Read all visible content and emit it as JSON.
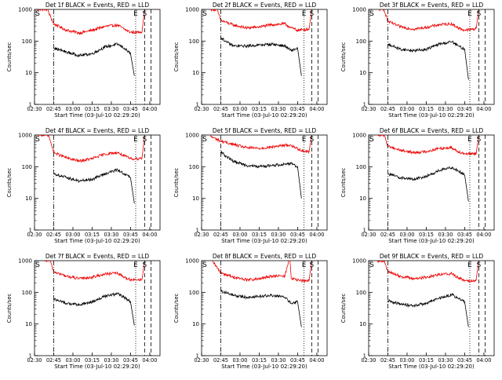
{
  "colors": {
    "events": "#000000",
    "lld": "#ee0000"
  },
  "chart_data": [
    {
      "type": "line",
      "title": "Det 1f BLACK = Events, RED = LLD",
      "xlabel": "Start Time (03-Jul-10 02:29:20)",
      "ylabel": "Counts/sec",
      "ylog": true,
      "ylim": [
        1,
        1000
      ],
      "xlim": [
        "02:30",
        "04:08"
      ],
      "x_ticks": [
        "02:30",
        "02:45",
        "03:00",
        "03:15",
        "03:30",
        "03:45",
        "04:00"
      ],
      "y_ticks": [
        "1",
        "10",
        "100",
        "1000"
      ],
      "markers": [
        "S",
        "E",
        "S"
      ],
      "marker_times": [
        "02:29",
        "03:49",
        "03:56"
      ],
      "lines": {
        "dashdot": "02:45",
        "dotted": "03:49",
        "dashed": [
          "03:56",
          "04:01"
        ]
      },
      "series": [
        {
          "name": "LLD",
          "x": [
            "02:32",
            "02:40",
            "02:45",
            "02:55",
            "03:05",
            "03:15",
            "03:25",
            "03:35",
            "03:40",
            "03:45",
            "03:50",
            "03:54",
            "03:56"
          ],
          "values": [
            1000,
            1000,
            350,
            220,
            180,
            220,
            290,
            320,
            240,
            190,
            190,
            200,
            1000
          ]
        },
        {
          "name": "Events",
          "x": [
            "02:45",
            "02:55",
            "03:05",
            "03:15",
            "03:25",
            "03:35",
            "03:40",
            "03:45",
            "03:48"
          ],
          "values": [
            60,
            45,
            35,
            40,
            65,
            80,
            60,
            40,
            8
          ]
        }
      ]
    },
    {
      "type": "line",
      "title": "Det 2f BLACK = Events, RED = LLD",
      "xlabel": "Start Time (03-Jul-10 02:29:20)",
      "ylabel": "Counts/sec",
      "ylog": true,
      "ylim": [
        1,
        1000
      ],
      "xlim": [
        "02:30",
        "04:08"
      ],
      "x_ticks": [
        "02:30",
        "02:45",
        "03:00",
        "03:15",
        "03:30",
        "03:45",
        "04:00"
      ],
      "y_ticks": [
        "1",
        "10",
        "100",
        "1000"
      ],
      "markers": [
        "S",
        "E",
        "S"
      ],
      "marker_times": [
        "02:29",
        "03:50",
        "03:56"
      ],
      "lines": {
        "dashdot": "02:45",
        "dotted": "03:50",
        "dashed": [
          "03:56",
          "04:01"
        ]
      },
      "series": [
        {
          "name": "LLD",
          "x": [
            "02:37",
            "02:42",
            "02:45",
            "02:55",
            "03:05",
            "03:15",
            "03:25",
            "03:35",
            "03:40",
            "03:45",
            "03:50",
            "03:54",
            "03:56"
          ],
          "values": [
            1000,
            1000,
            450,
            320,
            260,
            280,
            330,
            350,
            260,
            220,
            230,
            240,
            1000
          ]
        },
        {
          "name": "Events",
          "x": [
            "02:45",
            "02:50",
            "02:55",
            "03:05",
            "03:15",
            "03:25",
            "03:35",
            "03:40",
            "03:45",
            "03:48"
          ],
          "values": [
            130,
            90,
            70,
            70,
            75,
            80,
            70,
            50,
            60,
            8
          ]
        }
      ]
    },
    {
      "type": "line",
      "title": "Det 3f BLACK = Events, RED = LLD",
      "xlabel": "Start Time (03-Jul-10 02:29:20)",
      "ylabel": "Counts/sec",
      "ylog": true,
      "ylim": [
        1,
        1000
      ],
      "xlim": [
        "02:30",
        "04:08"
      ],
      "x_ticks": [
        "02:30",
        "02:45",
        "03:00",
        "03:15",
        "03:30",
        "03:45",
        "04:00"
      ],
      "y_ticks": [
        "1",
        "10",
        "100",
        "1000"
      ],
      "markers": [
        "S",
        "E",
        "S"
      ],
      "marker_times": [
        "02:29",
        "03:49",
        "03:56"
      ],
      "lines": {
        "dashdot": "02:45",
        "dotted": "03:49",
        "dashed": [
          "03:56",
          "04:01"
        ]
      },
      "series": [
        {
          "name": "LLD",
          "x": [
            "02:37",
            "02:42",
            "02:45",
            "02:55",
            "03:05",
            "03:15",
            "03:25",
            "03:35",
            "03:40",
            "03:45",
            "03:50",
            "03:54",
            "03:56"
          ],
          "values": [
            1000,
            1000,
            420,
            280,
            240,
            270,
            330,
            350,
            260,
            220,
            230,
            250,
            1000
          ]
        },
        {
          "name": "Events",
          "x": [
            "02:45",
            "02:55",
            "03:05",
            "03:15",
            "03:25",
            "03:35",
            "03:40",
            "03:45",
            "03:48"
          ],
          "values": [
            80,
            55,
            50,
            55,
            80,
            95,
            70,
            55,
            6
          ]
        }
      ]
    },
    {
      "type": "line",
      "title": "Det 4f BLACK = Events, RED = LLD",
      "xlabel": "Start Time (03-Jul-10 02:29:20)",
      "ylabel": "Counts/sec",
      "ylog": true,
      "ylim": [
        1,
        1000
      ],
      "xlim": [
        "02:30",
        "04:08"
      ],
      "x_ticks": [
        "02:30",
        "02:45",
        "03:00",
        "03:15",
        "03:30",
        "03:45",
        "04:00"
      ],
      "y_ticks": [
        "1",
        "10",
        "100",
        "1000"
      ],
      "markers": [
        "S",
        "E",
        "S"
      ],
      "marker_times": [
        "02:29",
        "03:49",
        "03:56"
      ],
      "lines": {
        "dashdot": "02:45",
        "dotted": "03:49",
        "dashed": [
          "03:56",
          "04:01"
        ]
      },
      "series": [
        {
          "name": "LLD",
          "x": [
            "02:32",
            "02:41",
            "02:45",
            "02:55",
            "03:05",
            "03:15",
            "03:25",
            "03:35",
            "03:40",
            "03:45",
            "03:50",
            "03:54",
            "03:56"
          ],
          "values": [
            1000,
            1000,
            280,
            190,
            150,
            180,
            250,
            280,
            220,
            180,
            180,
            190,
            1000
          ]
        },
        {
          "name": "Events",
          "x": [
            "02:45",
            "02:55",
            "03:05",
            "03:15",
            "03:25",
            "03:35",
            "03:40",
            "03:45",
            "03:48"
          ],
          "values": [
            60,
            45,
            35,
            40,
            60,
            80,
            60,
            45,
            7
          ]
        }
      ]
    },
    {
      "type": "line",
      "title": "Det 5f BLACK = Events, RED = LLD",
      "xlabel": "Start Time (03-Jul-10 02:29:20)",
      "ylabel": "Counts/sec",
      "ylog": true,
      "ylim": [
        1,
        1000
      ],
      "xlim": [
        "02:30",
        "04:08"
      ],
      "x_ticks": [
        "02:30",
        "02:45",
        "03:00",
        "03:15",
        "03:30",
        "03:45",
        "04:00"
      ],
      "y_ticks": [
        "1",
        "10",
        "100",
        "1000"
      ],
      "markers": [
        "S",
        "E",
        "S"
      ],
      "marker_times": [
        "02:29",
        "03:50",
        "03:56"
      ],
      "lines": {
        "dashdot": "02:45",
        "dotted": "03:50",
        "dashed": [
          "03:56",
          "04:01"
        ]
      },
      "series": [
        {
          "name": "LLD",
          "x": [
            "02:37",
            "02:45",
            "02:55",
            "03:05",
            "03:15",
            "03:25",
            "03:35",
            "03:40",
            "03:45",
            "03:50",
            "03:54",
            "03:56"
          ],
          "values": [
            900,
            650,
            500,
            400,
            380,
            420,
            480,
            470,
            370,
            310,
            300,
            1000
          ]
        },
        {
          "name": "Events",
          "x": [
            "02:45",
            "02:50",
            "02:55",
            "03:05",
            "03:15",
            "03:25",
            "03:35",
            "03:40",
            "03:45",
            "03:48"
          ],
          "values": [
            300,
            200,
            150,
            110,
            100,
            110,
            120,
            130,
            100,
            10
          ]
        }
      ]
    },
    {
      "type": "line",
      "title": "Det 6f BLACK = Events, RED = LLD",
      "xlabel": "Start Time (03-Jul-10 02:29:20)",
      "ylabel": "Counts/sec",
      "ylog": true,
      "ylim": [
        1,
        1000
      ],
      "xlim": [
        "02:30",
        "04:08"
      ],
      "x_ticks": [
        "02:30",
        "02:45",
        "03:00",
        "03:15",
        "03:30",
        "03:45",
        "04:00"
      ],
      "y_ticks": [
        "1",
        "10",
        "100",
        "1000"
      ],
      "markers": [
        "S",
        "E",
        "S"
      ],
      "marker_times": [
        "02:29",
        "03:49",
        "03:56"
      ],
      "lines": {
        "dashdot": "02:45",
        "dotted": "03:49",
        "dashed": [
          "03:56",
          "04:01"
        ]
      },
      "series": [
        {
          "name": "LLD",
          "x": [
            "02:37",
            "02:42",
            "02:45",
            "02:55",
            "03:05",
            "03:15",
            "03:25",
            "03:35",
            "03:40",
            "03:45",
            "03:50",
            "03:54",
            "03:56"
          ],
          "values": [
            1000,
            1000,
            450,
            330,
            280,
            300,
            380,
            400,
            300,
            260,
            250,
            260,
            1000
          ]
        },
        {
          "name": "Events",
          "x": [
            "02:45",
            "02:55",
            "03:05",
            "03:15",
            "03:25",
            "03:35",
            "03:40",
            "03:45",
            "03:48"
          ],
          "values": [
            60,
            45,
            40,
            50,
            75,
            95,
            75,
            55,
            8
          ]
        }
      ]
    },
    {
      "type": "line",
      "title": "Det 7f BLACK = Events, RED = LLD",
      "xlabel": "Start Time (03-Jul-10 02:29:20)",
      "ylabel": "Counts/sec",
      "ylog": true,
      "ylim": [
        1,
        1000
      ],
      "xlim": [
        "02:30",
        "04:08"
      ],
      "x_ticks": [
        "02:30",
        "02:45",
        "03:00",
        "03:15",
        "03:30",
        "03:45",
        "04:00"
      ],
      "y_ticks": [
        "1",
        "10",
        "100",
        "1000"
      ],
      "markers": [
        "S",
        "E",
        "S"
      ],
      "marker_times": [
        "02:29",
        "03:49",
        "03:56"
      ],
      "lines": {
        "dashdot": "02:45",
        "dotted": "03:49",
        "dashed": [
          "03:56",
          "04:01"
        ]
      },
      "series": [
        {
          "name": "LLD",
          "x": [
            "02:37",
            "02:42",
            "02:45",
            "02:55",
            "03:05",
            "03:15",
            "03:25",
            "03:35",
            "03:40",
            "03:45",
            "03:50",
            "03:54",
            "03:56"
          ],
          "values": [
            1000,
            1000,
            450,
            320,
            270,
            300,
            380,
            400,
            300,
            250,
            250,
            260,
            1000
          ]
        },
        {
          "name": "Events",
          "x": [
            "02:45",
            "02:55",
            "03:05",
            "03:15",
            "03:25",
            "03:35",
            "03:40",
            "03:45",
            "03:48"
          ],
          "values": [
            60,
            45,
            40,
            50,
            75,
            90,
            70,
            50,
            9
          ]
        }
      ]
    },
    {
      "type": "line",
      "title": "Det 8f BLACK = Events, RED = LLD",
      "xlabel": "Start Time (03-Jul-10 02:29:20)",
      "ylabel": "Counts/sec",
      "ylog": true,
      "ylim": [
        1,
        1000
      ],
      "xlim": [
        "02:30",
        "04:08"
      ],
      "x_ticks": [
        "02:30",
        "02:45",
        "03:00",
        "03:15",
        "03:30",
        "03:45",
        "04:00"
      ],
      "y_ticks": [
        "1",
        "10",
        "100",
        "1000"
      ],
      "markers": [
        "S",
        "E",
        "S"
      ],
      "marker_times": [
        "02:29",
        "03:50",
        "03:56"
      ],
      "lines": {
        "dashdot": "02:45",
        "dotted": "03:50",
        "dashed": [
          "03:56",
          "04:01"
        ]
      },
      "series": [
        {
          "name": "LLD",
          "x": [
            "02:38",
            "02:45",
            "02:55",
            "03:05",
            "03:15",
            "03:25",
            "03:35",
            "03:38",
            "03:39",
            "03:40",
            "03:45",
            "03:50",
            "03:54",
            "03:56"
          ],
          "values": [
            1000,
            420,
            300,
            250,
            260,
            330,
            320,
            1000,
            1000,
            280,
            240,
            230,
            240,
            1000
          ]
        },
        {
          "name": "Events",
          "x": [
            "02:45",
            "02:55",
            "03:05",
            "03:15",
            "03:25",
            "03:35",
            "03:40",
            "03:45",
            "03:48"
          ],
          "values": [
            110,
            80,
            70,
            75,
            80,
            70,
            45,
            50,
            8
          ]
        }
      ]
    },
    {
      "type": "line",
      "title": "Det 9f BLACK = Events, RED = LLD",
      "xlabel": "Start Time (03-Jul-10 02:29:20)",
      "ylabel": "Counts/sec",
      "ylog": true,
      "ylim": [
        1,
        1000
      ],
      "xlim": [
        "02:30",
        "04:08"
      ],
      "x_ticks": [
        "02:30",
        "02:45",
        "03:00",
        "03:15",
        "03:30",
        "03:45",
        "04:00"
      ],
      "y_ticks": [
        "1",
        "10",
        "100",
        "1000"
      ],
      "markers": [
        "S",
        "E",
        "S"
      ],
      "marker_times": [
        "02:29",
        "03:49",
        "03:56"
      ],
      "lines": {
        "dashdot": "02:45",
        "dotted": "03:49",
        "dashed": [
          "03:56",
          "04:01"
        ]
      },
      "series": [
        {
          "name": "LLD",
          "x": [
            "02:37",
            "02:42",
            "02:45",
            "02:55",
            "03:05",
            "03:15",
            "03:25",
            "03:35",
            "03:40",
            "03:45",
            "03:50",
            "03:54",
            "03:56"
          ],
          "values": [
            1000,
            1000,
            450,
            320,
            270,
            300,
            370,
            390,
            290,
            240,
            230,
            250,
            1000
          ]
        },
        {
          "name": "Events",
          "x": [
            "02:45",
            "02:55",
            "03:05",
            "03:15",
            "03:25",
            "03:35",
            "03:40",
            "03:45",
            "03:48"
          ],
          "values": [
            55,
            42,
            38,
            45,
            65,
            85,
            65,
            50,
            8
          ]
        }
      ]
    }
  ]
}
